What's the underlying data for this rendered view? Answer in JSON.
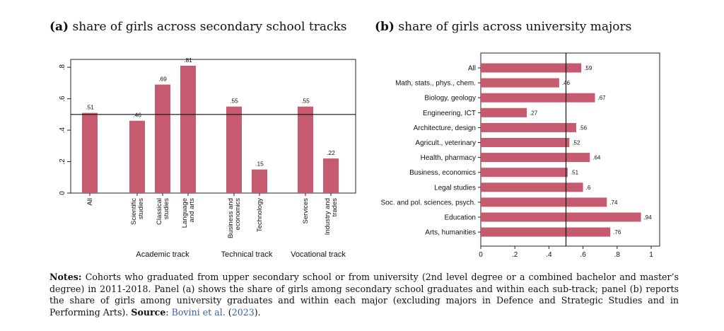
{
  "panel_a": {
    "label": "(a)",
    "title": "share of girls across secondary school tracks"
  },
  "panel_b": {
    "label": "(b)",
    "title": "share of girls across university majors"
  },
  "colors": {
    "bar": "#c65a6f",
    "axis": "#222222",
    "refline": "#111111"
  },
  "notes": {
    "lead": "Notes:",
    "text": "Cohorts who graduated from upper secondary school or from university (2nd level degree or a combined bachelor and master’s degree) in 2011-2018. Panel (a) shows the share of girls among secondary school graduates and within each sub-track; panel (b) reports the share of girls among university graduates and within each major (excluding majors in Defence and Strategic Studies and in Performing Arts).",
    "source_label": "Source",
    "source_text": "Bovini et al.",
    "source_year": "2023"
  },
  "chart_data": [
    {
      "type": "bar",
      "orientation": "vertical",
      "categories": [
        [
          "All"
        ],
        [
          "Scientific",
          "studies"
        ],
        [
          "Classical",
          "studies"
        ],
        [
          "Language",
          "and arts"
        ],
        [
          "Business and",
          "economics"
        ],
        [
          "Technology"
        ],
        [
          "Services"
        ],
        [
          "Industry and",
          "trades"
        ]
      ],
      "values": [
        0.51,
        0.46,
        0.69,
        0.81,
        0.55,
        0.15,
        0.55,
        0.22
      ],
      "value_labels": [
        ".51",
        ".46",
        ".69",
        ".81",
        ".55",
        ".15",
        ".55",
        ".22"
      ],
      "groups": [
        "Academic track",
        "Technical track",
        "Vocational track"
      ],
      "ylim": [
        0,
        0.85
      ],
      "yticks": [
        0,
        0.2,
        0.4,
        0.6,
        0.8
      ],
      "ytick_labels": [
        "0",
        ".2",
        ".4",
        ".6",
        ".8"
      ],
      "reference_line": 0.5,
      "grid": false
    },
    {
      "type": "bar",
      "orientation": "horizontal",
      "categories": [
        "All",
        "Math, stats., phys., chem.",
        "Biology, geology",
        "Engineering, ICT",
        "Architecture, design",
        "Agricult., veterinary",
        "Health, pharmacy",
        "Business, economics",
        "Legal studies",
        "Soc. and pol. sciences, psych.",
        "Education",
        "Arts, humanities"
      ],
      "values": [
        0.59,
        0.46,
        0.67,
        0.27,
        0.56,
        0.52,
        0.64,
        0.51,
        0.6,
        0.74,
        0.94,
        0.76
      ],
      "value_labels": [
        ".59",
        ".46",
        ".67",
        ".27",
        ".56",
        ".52",
        ".64",
        ".51",
        ".6",
        ".74",
        ".94",
        ".76"
      ],
      "xlim": [
        0,
        1
      ],
      "xticks": [
        0,
        0.2,
        0.4,
        0.6,
        0.8,
        1
      ],
      "xtick_labels": [
        "0",
        ".2",
        ".4",
        ".6",
        ".8",
        "1"
      ],
      "reference_line": 0.5,
      "grid": false
    }
  ]
}
